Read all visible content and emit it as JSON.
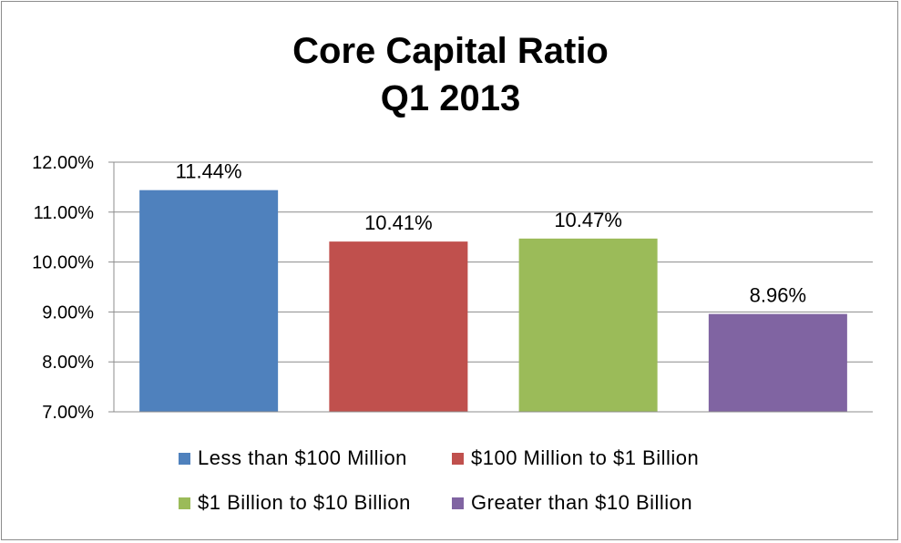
{
  "chart_data": {
    "type": "bar",
    "title_lines": [
      "Core Capital Ratio",
      "Q1 2013"
    ],
    "categories": [
      "Less than $100 Million",
      "$100 Million to $1 Billion",
      "$1 Billion to $10 Billion",
      "Greater than $10 Billion"
    ],
    "values": [
      11.44,
      10.41,
      10.47,
      8.96
    ],
    "value_labels": [
      "11.44%",
      "10.41%",
      "10.47%",
      "8.96%"
    ],
    "colors": [
      "#4f81bd",
      "#c0504d",
      "#9bbb59",
      "#8064a2"
    ],
    "ylim": [
      7,
      12
    ],
    "yticks": [
      7,
      8,
      9,
      10,
      11,
      12
    ],
    "ytick_labels": [
      "7.00%",
      "8.00%",
      "9.00%",
      "10.00%",
      "11.00%",
      "12.00%"
    ],
    "grid": true,
    "legend_position": "bottom",
    "xlabel": "",
    "ylabel": ""
  }
}
